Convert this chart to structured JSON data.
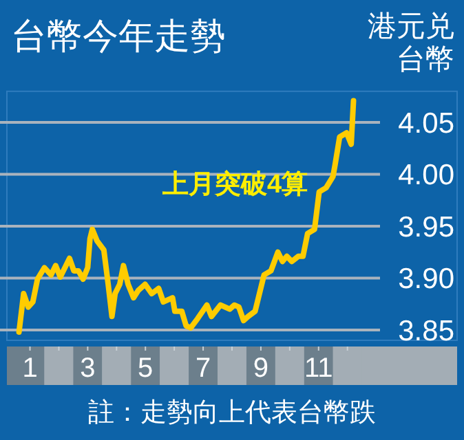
{
  "chart_data": {
    "type": "line",
    "title": "台幣今年走勢",
    "ylabel": "港元兑台幣",
    "annotations": [
      "上月突破4算",
      "註：走勢向上代表台幣跌"
    ],
    "x": [
      0.62,
      0.78,
      0.94,
      1.1,
      1.26,
      1.5,
      1.73,
      1.89,
      2.05,
      2.37,
      2.52,
      2.68,
      2.84,
      3.0,
      3.08,
      3.16,
      3.32,
      3.56,
      3.71,
      3.84,
      3.95,
      4.11,
      4.24,
      4.4,
      4.59,
      4.75,
      4.99,
      5.22,
      5.46,
      5.62,
      5.94,
      6.02,
      6.26,
      6.41,
      6.57,
      6.81,
      7.13,
      7.29,
      7.6,
      7.92,
      8.08,
      8.24,
      8.4,
      8.56,
      8.8,
      9.11,
      9.35,
      9.59,
      9.75,
      9.9,
      10.07,
      10.3,
      10.46,
      10.62,
      10.86,
      11.02,
      11.26,
      11.5,
      11.57,
      11.73,
      11.97,
      12.13,
      12.21
    ],
    "values": [
      3.848,
      3.885,
      3.872,
      3.877,
      3.899,
      3.91,
      3.903,
      3.912,
      3.901,
      3.919,
      3.907,
      3.907,
      3.899,
      3.91,
      3.938,
      3.947,
      3.936,
      3.927,
      3.894,
      3.863,
      3.885,
      3.894,
      3.912,
      3.894,
      3.881,
      3.888,
      3.894,
      3.885,
      3.89,
      3.877,
      3.881,
      3.868,
      3.868,
      3.854,
      3.852,
      3.861,
      3.874,
      3.863,
      3.874,
      3.87,
      3.874,
      3.872,
      3.859,
      3.863,
      3.868,
      3.903,
      3.907,
      3.925,
      3.916,
      3.921,
      3.916,
      3.921,
      3.921,
      3.943,
      3.947,
      3.983,
      3.987,
      3.998,
      4.009,
      4.036,
      4.04,
      4.029,
      4.071
    ],
    "color": "#ffcc00",
    "xlim": [
      0.2,
      15.8
    ],
    "xticks": [
      1,
      {
        "value": 2,
        "label": null
      },
      3,
      {
        "value": 4,
        "label": null
      },
      5,
      {
        "value": 6,
        "label": null
      },
      7,
      {
        "value": 8,
        "label": null
      },
      9,
      {
        "value": 10,
        "label": null
      },
      11,
      {
        "value": 12,
        "label": null
      }
    ],
    "ylim": [
      3.84,
      4.08
    ],
    "yticks": [
      {
        "value": 3.85,
        "label": "3.85"
      },
      {
        "value": 3.9,
        "label": "3.90"
      },
      {
        "value": 3.95,
        "label": "3.95"
      },
      {
        "value": 4.0,
        "label": "4.00"
      },
      {
        "value": 4.05,
        "label": "4.05"
      }
    ],
    "grid": "y"
  }
}
